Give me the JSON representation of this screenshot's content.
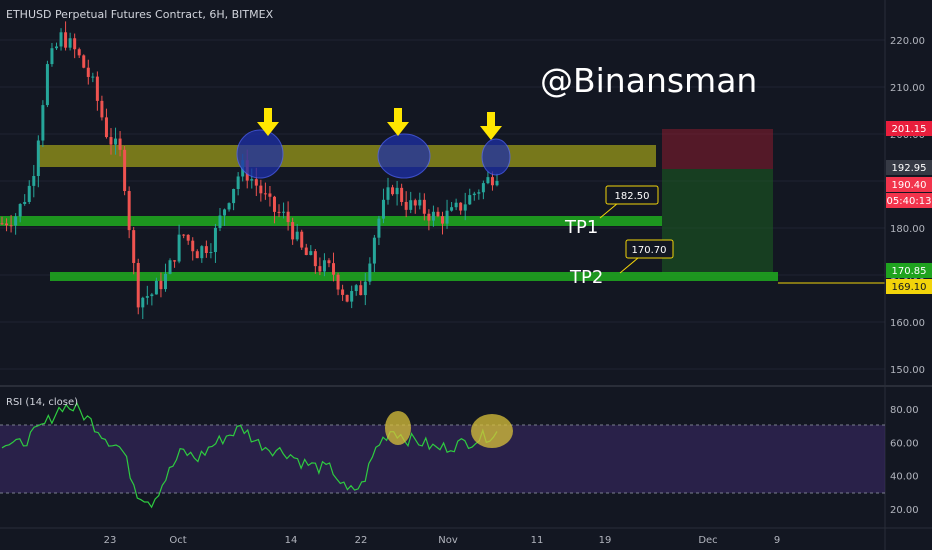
{
  "header": {
    "title": "ETHUSD Perpetual Futures Contract, 6H, BITMEX"
  },
  "watermark": "@Binansman",
  "colors": {
    "background": "#131722",
    "up": "#26a69a",
    "down": "#ef5350",
    "resistance_zone": "#9a9a1a",
    "support_zone": "#1fa31f",
    "rsi_line": "#2ecc40",
    "rsi_band": "#3d2a6a",
    "marker_arrow": "#ffe600",
    "highlight_ellipse": "#1d2fa8",
    "rsi_ellipse": "#d9c23a",
    "target_line": "#f2d40a"
  },
  "rsi": {
    "label": "RSI (14, close)",
    "levels": [
      70,
      30
    ]
  },
  "price_tags": {
    "stop": "201.15",
    "close": "192.95",
    "current": "190.40",
    "countdown": "05:40:13",
    "tp2_axis": "170.85",
    "target_axis": "169.10"
  },
  "annotations": {
    "tp1_label": "TP1",
    "tp1_value": "182.50",
    "tp2_label": "TP2",
    "tp2_value": "170.70"
  },
  "chart_data": [
    {
      "type": "candlestick",
      "title": "ETHUSD Perpetual Futures Contract, 6H, BITMEX",
      "x_ticks": [
        "23",
        "Oct",
        "14",
        "22",
        "Nov",
        "11",
        "19",
        "Dec",
        "9"
      ],
      "y_ticks": [
        150.0,
        160.0,
        170.0,
        180.0,
        190.0,
        200.0,
        210.0,
        220.0
      ],
      "ylim": [
        146,
        226
      ],
      "series": [
        {
          "values_close_approx": [
            181,
            183,
            190,
            214,
            221,
            217,
            211,
            200,
            195,
            165,
            166,
            170,
            179,
            175,
            177,
            186,
            193,
            189,
            184,
            182,
            175,
            172,
            171,
            165,
            167,
            181,
            189,
            185,
            184,
            182,
            183,
            186,
            189,
            192
          ]
        }
      ],
      "zones": [
        {
          "name": "resistance",
          "low": 193.5,
          "high": 197.0
        },
        {
          "name": "TP1",
          "low": 181.5,
          "high": 183.5
        },
        {
          "name": "TP2",
          "low": 170.2,
          "high": 171.2
        }
      ],
      "annotations": [
        "TP1",
        "182.50",
        "TP2",
        "170.70",
        "201.15",
        "192.95",
        "190.40",
        "170.85",
        "169.10"
      ]
    },
    {
      "type": "line",
      "title": "RSI (14, close)",
      "y_ticks": [
        20.0,
        40.0,
        60.0,
        80.0
      ],
      "ylim": [
        13,
        87
      ],
      "bands": [
        30,
        70
      ],
      "series": [
        {
          "values_approx": [
            60,
            58,
            64,
            72,
            82,
            80,
            72,
            62,
            56,
            30,
            24,
            40,
            55,
            50,
            58,
            64,
            69,
            60,
            56,
            54,
            48,
            45,
            44,
            30,
            34,
            58,
            68,
            62,
            60,
            56,
            58,
            60,
            63,
            66
          ]
        }
      ]
    }
  ]
}
